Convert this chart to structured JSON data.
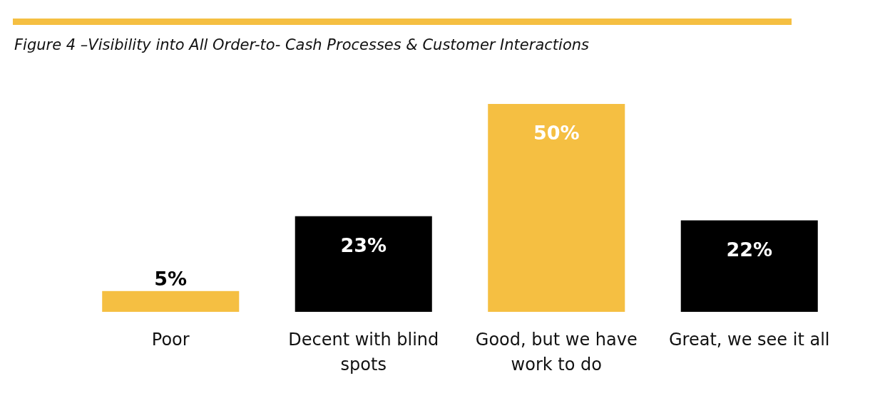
{
  "chart_data": {
    "type": "bar",
    "title": "Figure 4 –Visibility into All Order-to- Cash Processes & Customer Interactions",
    "categories": [
      "Poor",
      "Decent with blind spots",
      "Good, but we have work to do",
      "Great, we see it all"
    ],
    "values": [
      5,
      23,
      50,
      22
    ],
    "colors": [
      "#f5bf42",
      "#000000",
      "#f5bf42",
      "#000000"
    ],
    "value_labels": [
      "5%",
      "23%",
      "50%",
      "22%"
    ]
  }
}
